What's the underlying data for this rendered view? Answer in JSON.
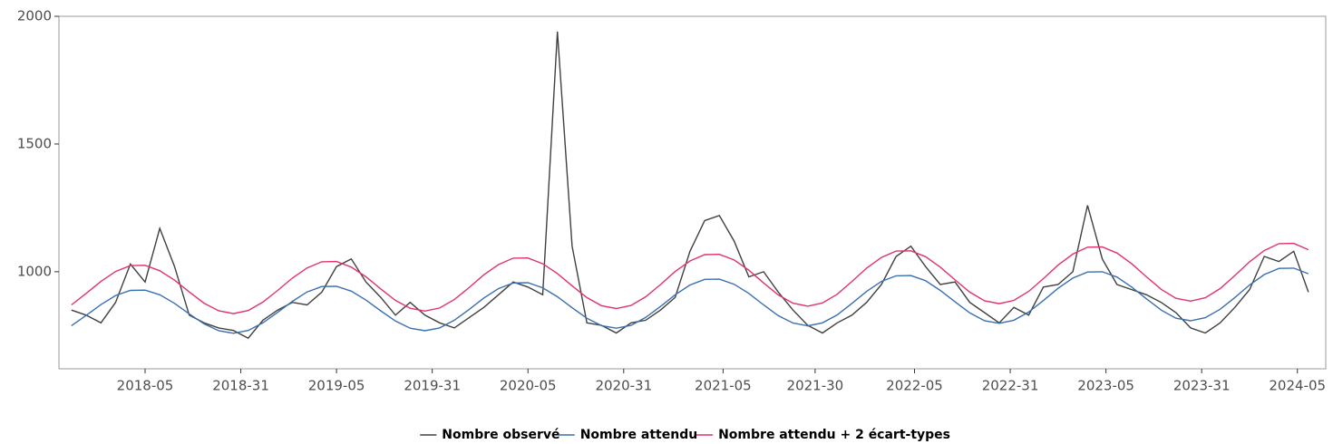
{
  "chart_data": {
    "type": "line",
    "x": [
      -20,
      -16,
      -12,
      -8,
      -4,
      0,
      4,
      8,
      12,
      16,
      20,
      24,
      28,
      32,
      36,
      40,
      44,
      48,
      52,
      56,
      60,
      64,
      68,
      72,
      76,
      80,
      84,
      88,
      92,
      96,
      100,
      104,
      108,
      112,
      116,
      120,
      124,
      128,
      132,
      136,
      140,
      144,
      148,
      152,
      156,
      160,
      164,
      168,
      172,
      176,
      180,
      184,
      188,
      192,
      196,
      200,
      204,
      208,
      212,
      216,
      220,
      224,
      228,
      232,
      236,
      240,
      244,
      248,
      252,
      256,
      260,
      264,
      268,
      272,
      276,
      280,
      284,
      288,
      292,
      296,
      300,
      304,
      308,
      312,
      316
    ],
    "series": [
      {
        "name": "Nombre observé",
        "color": "#404040",
        "values": [
          850,
          830,
          800,
          880,
          1030,
          960,
          1170,
          1020,
          830,
          800,
          780,
          770,
          740,
          810,
          850,
          880,
          870,
          920,
          1020,
          1050,
          960,
          900,
          830,
          880,
          830,
          800,
          780,
          820,
          860,
          910,
          960,
          940,
          910,
          1940,
          1100,
          800,
          790,
          760,
          800,
          810,
          850,
          900,
          1080,
          1200,
          1220,
          1120,
          980,
          1000,
          920,
          850,
          790,
          760,
          800,
          830,
          880,
          950,
          1060,
          1100,
          1020,
          950,
          960,
          880,
          840,
          800,
          860,
          830,
          940,
          950,
          1000,
          1260,
          1050,
          950,
          930,
          910,
          880,
          840,
          780,
          760,
          800,
          860,
          930,
          1060,
          1040,
          1080,
          920
        ]
      },
      {
        "name": "Nombre attendu",
        "color": "#3a6fb0",
        "values": [
          789,
          829,
          871,
          907,
          927,
          928,
          910,
          876,
          835,
          796,
          769,
          759,
          770,
          800,
          841,
          884,
          921,
          942,
          943,
          924,
          889,
          847,
          807,
          779,
          769,
          780,
          810,
          852,
          897,
          934,
          956,
          957,
          937,
          902,
          859,
          818,
          789,
          779,
          790,
          821,
          864,
          910,
          948,
          970,
          971,
          951,
          915,
          870,
          828,
          799,
          788,
          800,
          831,
          876,
          923,
          962,
          984,
          985,
          965,
          927,
          882,
          839,
          808,
          798,
          810,
          842,
          887,
          935,
          975,
          999,
          1000,
          979,
          940,
          894,
          850,
          818,
          808,
          820,
          853,
          899,
          948,
          989,
          1013,
          1014,
          992
        ]
      },
      {
        "name": "Nombre attendu  + 2 écart-types",
        "color": "#e0336b",
        "values": [
          870,
          915,
          962,
          1001,
          1024,
          1025,
          1004,
          967,
          921,
          877,
          847,
          836,
          848,
          881,
          927,
          975,
          1015,
          1039,
          1040,
          1018,
          980,
          933,
          888,
          857,
          846,
          858,
          891,
          938,
          988,
          1028,
          1053,
          1054,
          1031,
          993,
          945,
          899,
          867,
          856,
          868,
          902,
          950,
          1001,
          1042,
          1067,
          1068,
          1046,
          1006,
          956,
          909,
          877,
          865,
          878,
          912,
          962,
          1014,
          1056,
          1081,
          1082,
          1059,
          1018,
          968,
          920,
          886,
          875,
          888,
          923,
          973,
          1026,
          1069,
          1096,
          1097,
          1073,
          1031,
          980,
          931,
          896,
          885,
          898,
          934,
          985,
          1039,
          1083,
          1110,
          1111,
          1086
        ]
      }
    ],
    "xlim": [
      -23.4,
      320.7
    ],
    "xticks": [
      {
        "value": 0,
        "label": "2018-05"
      },
      {
        "value": 26,
        "label": "2018-31"
      },
      {
        "value": 52,
        "label": "2019-05"
      },
      {
        "value": 78,
        "label": "2019-31"
      },
      {
        "value": 104,
        "label": "2020-05"
      },
      {
        "value": 130,
        "label": "2020-31"
      },
      {
        "value": 157,
        "label": "2021-05"
      },
      {
        "value": 182,
        "label": "2021-30"
      },
      {
        "value": 209,
        "label": "2022-05"
      },
      {
        "value": 235,
        "label": "2022-31"
      },
      {
        "value": 261,
        "label": "2023-05"
      },
      {
        "value": 287,
        "label": "2023-31"
      },
      {
        "value": 313,
        "label": "2024-05"
      }
    ],
    "ylim": [
      620,
      2000
    ],
    "yticks": [
      1000,
      1500,
      2000
    ],
    "legend": "bottom"
  }
}
